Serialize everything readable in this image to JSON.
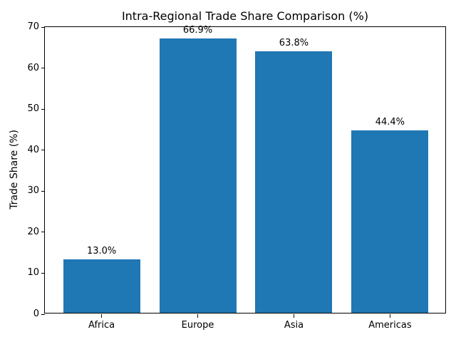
{
  "chart_data": {
    "type": "bar",
    "title": "Intra-Regional Trade Share Comparison (%)",
    "ylabel": "Trade Share (%)",
    "xlabel": "",
    "categories": [
      "Africa",
      "Europe",
      "Asia",
      "Americas"
    ],
    "values": [
      13.0,
      66.9,
      63.8,
      44.4
    ],
    "value_labels": [
      "13.0%",
      "66.9%",
      "63.8%",
      "44.4%"
    ],
    "yticks": [
      0,
      10,
      20,
      30,
      40,
      50,
      60,
      70
    ],
    "ylim": [
      0,
      70
    ],
    "xlim": [
      -0.59,
      3.59
    ],
    "bar_width_ratio": 0.8,
    "bar_color": "#1f77b4",
    "grid": false,
    "legend_position": "none",
    "background_color": "#ffffff",
    "text_color": "#000000"
  }
}
